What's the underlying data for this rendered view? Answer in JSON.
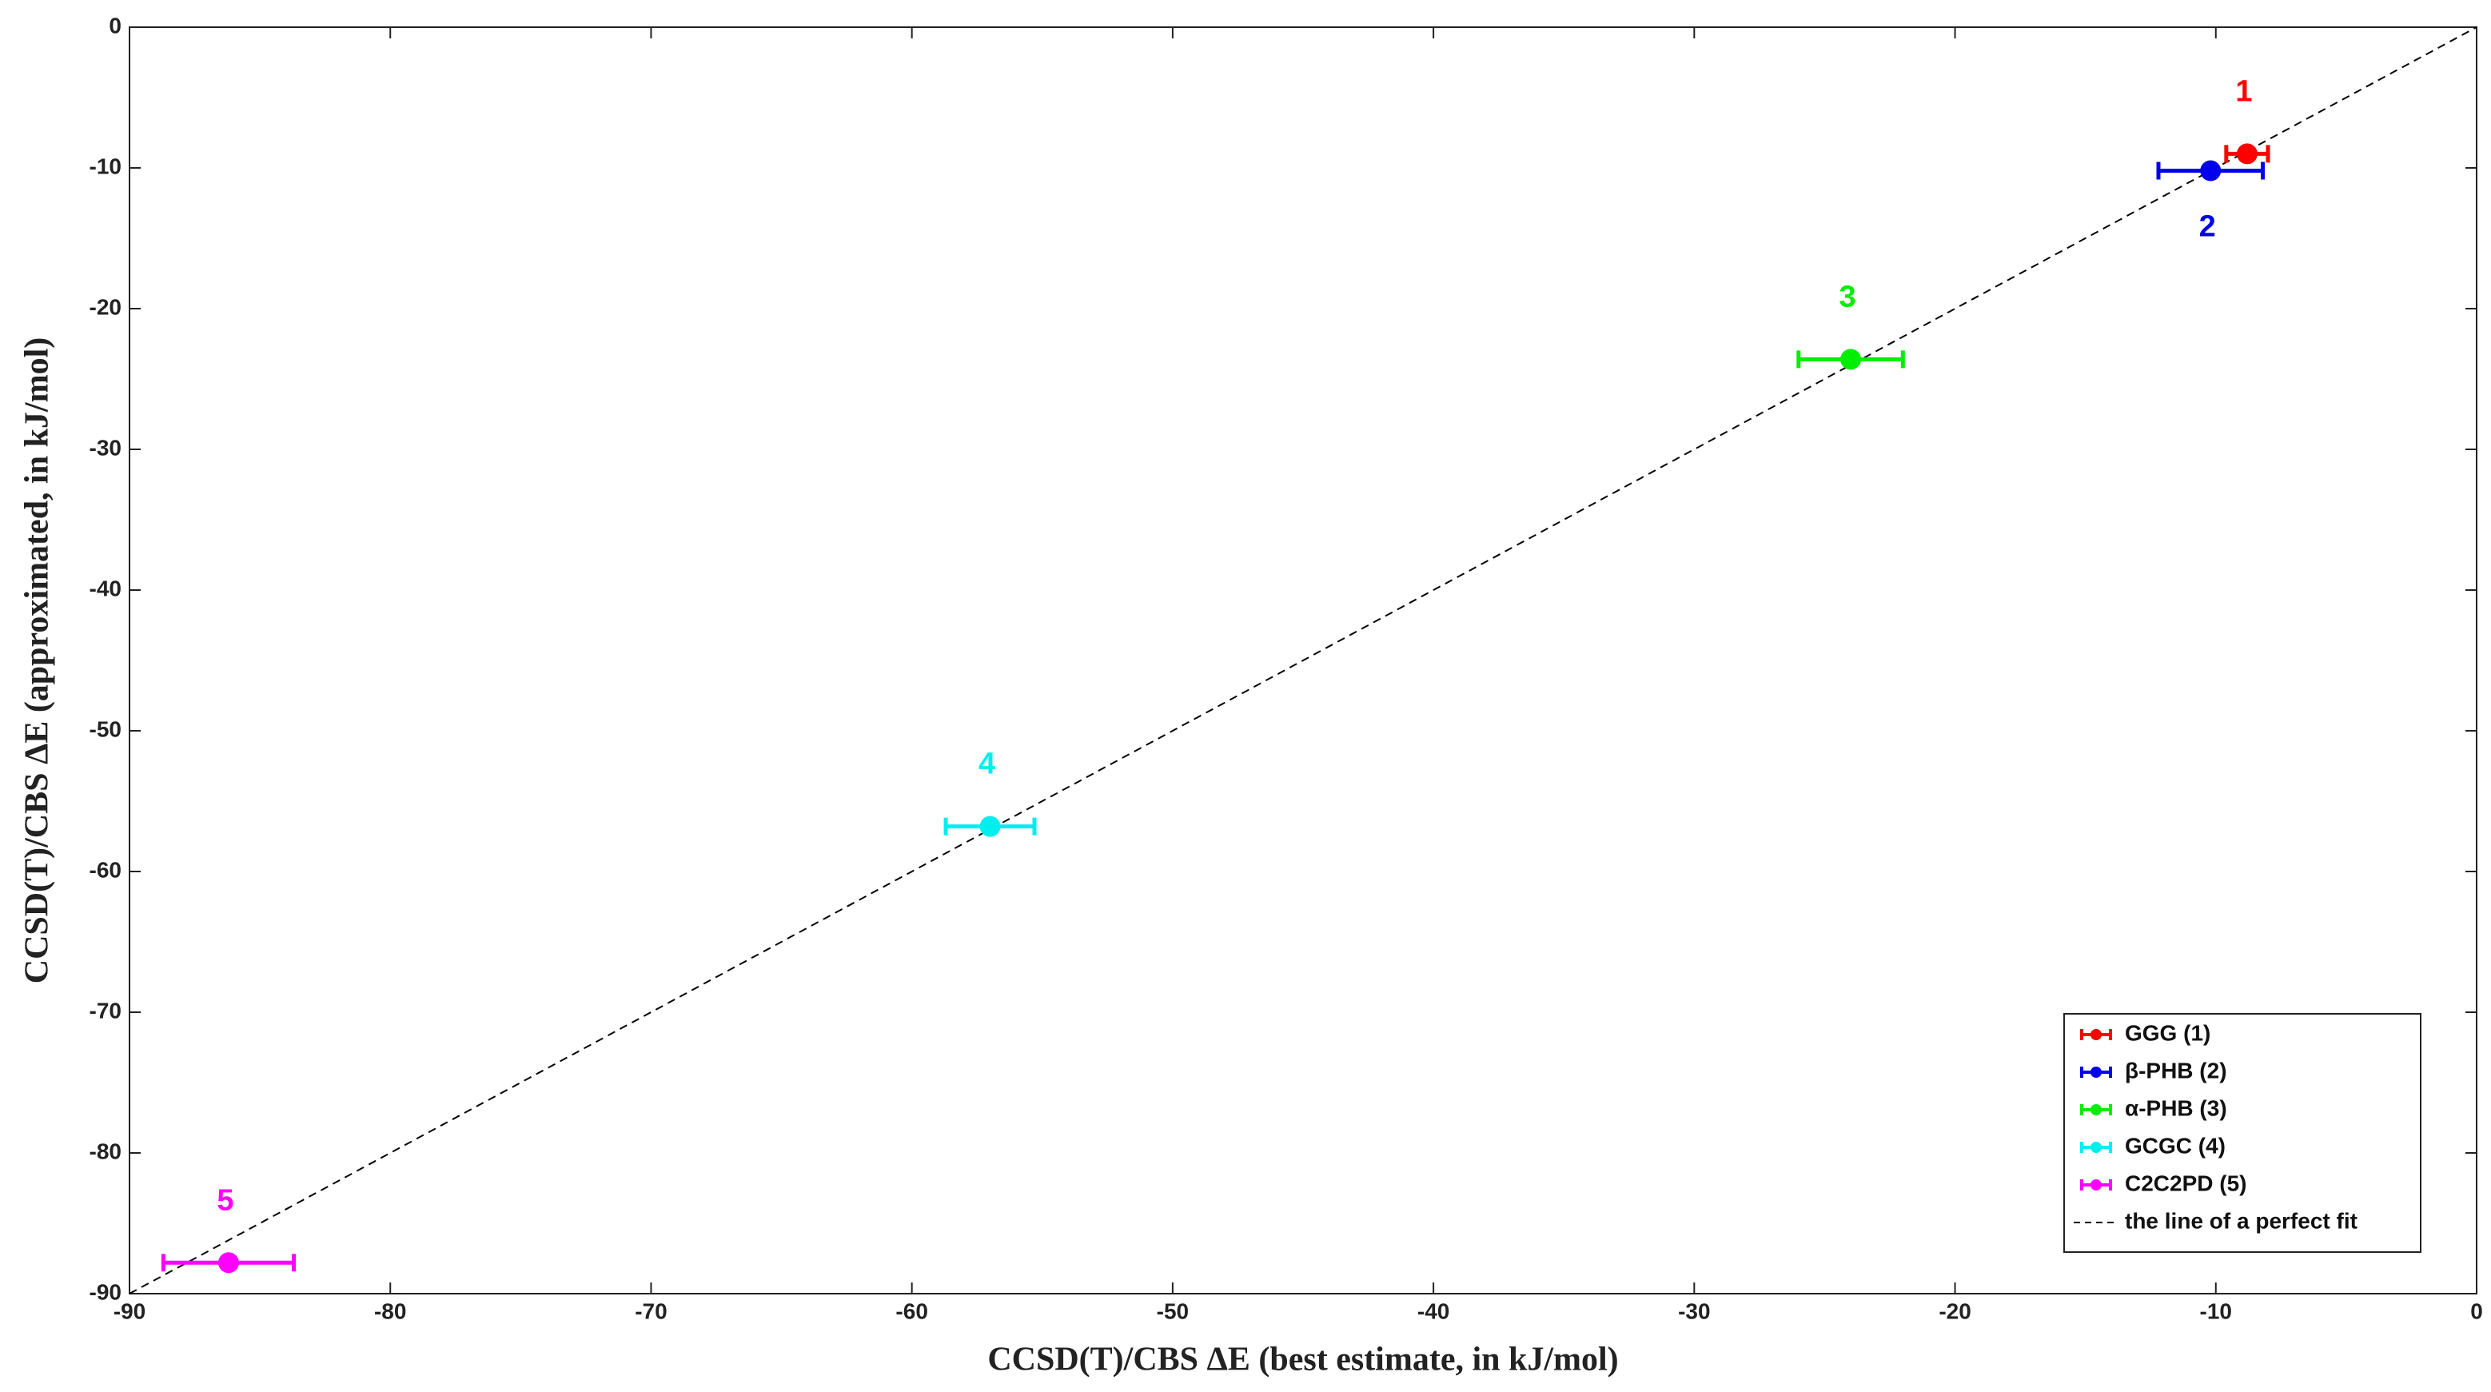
{
  "chart_data": {
    "type": "scatter",
    "xlabel": "CCSD(T)/CBS  ΔE (best estimate, in kJ/mol)",
    "ylabel": "CCSD(T)/CBS  ΔE (approximated, in kJ/mol)",
    "xlim": [
      -90,
      0
    ],
    "ylim": [
      -90,
      0
    ],
    "xticks": [
      -90,
      -80,
      -70,
      -60,
      -50,
      -40,
      -30,
      -20,
      -10,
      0
    ],
    "yticks": [
      -90,
      -80,
      -70,
      -60,
      -50,
      -40,
      -30,
      -20,
      -10,
      0
    ],
    "legend": "lower right",
    "series": [
      {
        "name": "GGG (1)",
        "color": "#ff0000",
        "x": [
          -8.8
        ],
        "values": [
          -9.0
        ],
        "xerr": [
          0.8
        ],
        "label": "1",
        "label_position": "above"
      },
      {
        "name": "β-PHB (2)",
        "color": "#0000ee",
        "x": [
          -10.2
        ],
        "values": [
          -10.2
        ],
        "xerr": [
          2.0
        ],
        "label": "2",
        "label_position": "below"
      },
      {
        "name": "α-PHB (3)",
        "color": "#00ee00",
        "x": [
          -24.0
        ],
        "values": [
          -23.6
        ],
        "xerr": [
          2.0
        ],
        "label": "3",
        "label_position": "above"
      },
      {
        "name": "GCGC (4)",
        "color": "#00eeee",
        "x": [
          -57.0
        ],
        "values": [
          -56.8
        ],
        "xerr": [
          1.7
        ],
        "label": "4",
        "label_position": "above"
      },
      {
        "name": "C2C2PD (5)",
        "color": "#ff00ff",
        "x": [
          -86.2
        ],
        "values": [
          -87.8
        ],
        "xerr": [
          2.5
        ],
        "label": "5",
        "label_position": "above"
      }
    ],
    "fit_line": {
      "name": "the line of a perfect fit",
      "color": "#000000",
      "x": [
        -90,
        0
      ],
      "values": [
        -90,
        0
      ]
    }
  }
}
